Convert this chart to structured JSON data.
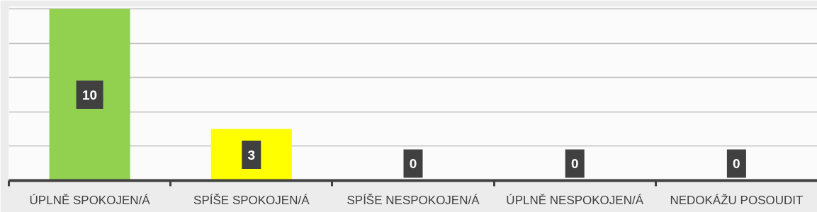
{
  "chart_data": {
    "type": "bar",
    "categories": [
      "ÚPLNĚ SPOKOJEN/Á",
      "SPÍŠE SPOKOJEN/Á",
      "SPÍŠE NESPOKOJEN/Á",
      "ÚPLNĚ NESPOKOJEN/Á",
      "NEDOKÁŽU POSOUDIT"
    ],
    "values": [
      10,
      3,
      0,
      0,
      0
    ],
    "colors": [
      "#92d050",
      "#ffff00",
      "#92d050",
      "#92d050",
      "#92d050"
    ],
    "ylim": [
      0,
      10
    ],
    "yticks": [
      {
        "value": 0,
        "label": null
      },
      {
        "value": 2,
        "label": null
      },
      {
        "value": 4,
        "label": null
      },
      {
        "value": 6,
        "label": null
      },
      {
        "value": 8,
        "label": null
      },
      {
        "value": 10,
        "label": null
      }
    ],
    "tick_labels": "x",
    "grid": "y",
    "data_labels": true
  }
}
